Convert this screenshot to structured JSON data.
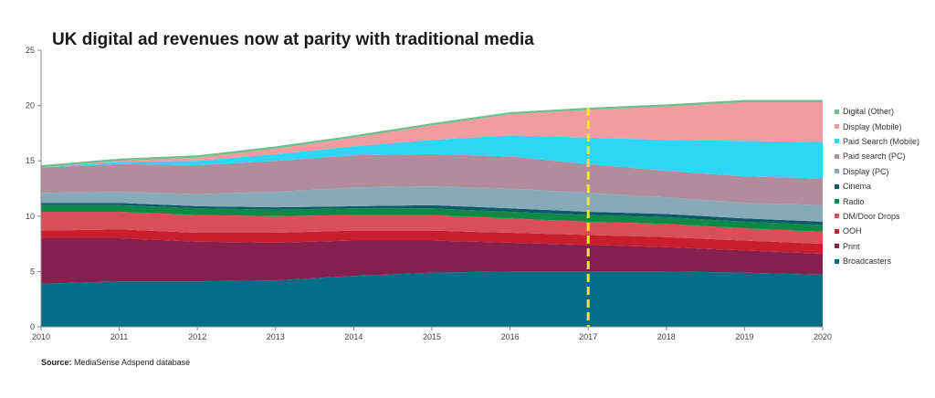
{
  "chart_data": {
    "type": "area",
    "title": "UK digital ad revenues now at parity with traditional media",
    "xlabel": "",
    "ylabel": "",
    "x": [
      2010,
      2011,
      2012,
      2013,
      2014,
      2015,
      2016,
      2017,
      2018,
      2019,
      2020
    ],
    "x_tick_labels": [
      "2010",
      "2011",
      "2012",
      "2013",
      "2014",
      "2015",
      "2016",
      "2017",
      "2018",
      "2019",
      "2020"
    ],
    "ylim": [
      0,
      25
    ],
    "y_ticks": [
      0,
      5,
      10,
      15,
      20,
      25
    ],
    "y_tick_labels": [
      "0",
      "5",
      "10",
      "15",
      "20",
      "25"
    ],
    "stacked": true,
    "grid": false,
    "legend_position": "right",
    "highlight_year": 2017,
    "highlight_color": "#f5e82a",
    "series": [
      {
        "name": "Broadcasters",
        "color": "#006e87",
        "values": [
          3.9,
          4.1,
          4.1,
          4.2,
          4.6,
          4.9,
          5.0,
          5.0,
          5.0,
          4.9,
          4.7
        ]
      },
      {
        "name": "Print",
        "color": "#84204f",
        "values": [
          4.1,
          3.9,
          3.6,
          3.4,
          3.2,
          2.9,
          2.6,
          2.4,
          2.2,
          2.0,
          1.9
        ]
      },
      {
        "name": "OOH",
        "color": "#c81e2e",
        "values": [
          0.7,
          0.8,
          0.8,
          0.9,
          0.9,
          0.9,
          0.9,
          0.9,
          0.9,
          0.9,
          0.9
        ]
      },
      {
        "name": "DM/Door Drops",
        "color": "#d94f57",
        "values": [
          1.7,
          1.6,
          1.6,
          1.5,
          1.4,
          1.4,
          1.3,
          1.2,
          1.2,
          1.1,
          1.1
        ]
      },
      {
        "name": "Radio",
        "color": "#0e8a45",
        "values": [
          0.6,
          0.6,
          0.6,
          0.6,
          0.6,
          0.6,
          0.6,
          0.6,
          0.6,
          0.6,
          0.6
        ]
      },
      {
        "name": "Cinema",
        "color": "#0c5a6b",
        "values": [
          0.2,
          0.2,
          0.2,
          0.2,
          0.2,
          0.3,
          0.3,
          0.3,
          0.3,
          0.3,
          0.3
        ]
      },
      {
        "name": "Display (PC)",
        "color": "#86aab8",
        "values": [
          0.9,
          1.0,
          1.1,
          1.4,
          1.7,
          1.7,
          1.8,
          1.7,
          1.5,
          1.4,
          1.5
        ]
      },
      {
        "name": "Paid search (PC)",
        "color": "#b28c9b",
        "values": [
          2.3,
          2.5,
          2.6,
          2.8,
          2.9,
          2.9,
          2.9,
          2.6,
          2.4,
          2.4,
          2.4
        ]
      },
      {
        "name": "Paid Search (Mobile)",
        "color": "#2ed5f5",
        "values": [
          0.0,
          0.2,
          0.4,
          0.6,
          0.8,
          1.3,
          1.9,
          2.4,
          2.8,
          3.2,
          3.3
        ]
      },
      {
        "name": "Display (Mobile)",
        "color": "#f39b9e",
        "values": [
          0.0,
          0.1,
          0.3,
          0.5,
          0.8,
          1.3,
          1.9,
          2.5,
          3.0,
          3.5,
          3.6
        ]
      },
      {
        "name": "Digital (Other)",
        "color": "#6dc08c",
        "values": [
          0.2,
          0.2,
          0.2,
          0.2,
          0.2,
          0.2,
          0.2,
          0.2,
          0.2,
          0.2,
          0.2
        ]
      }
    ]
  },
  "source": {
    "label": "Source:",
    "text": " MediaSense Adspend database"
  }
}
